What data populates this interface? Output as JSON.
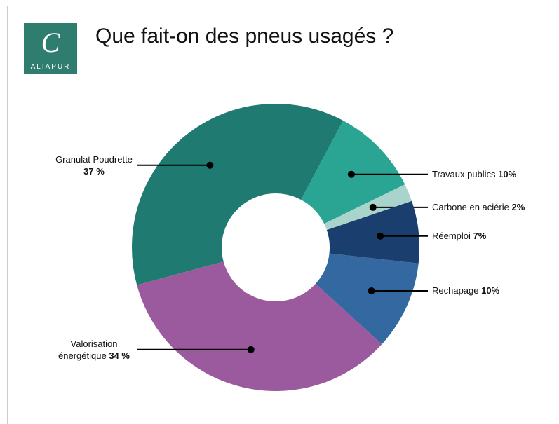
{
  "logo": {
    "text": "ALIAPUR"
  },
  "chart_data": {
    "type": "donut",
    "title": "Que fait-on des pneus usagés ?",
    "categories": [
      "Granulat Poudrette",
      "Travaux publics",
      "Carbone en aciérie",
      "Réemploi",
      "Rechapage",
      "Valorisation énergétique"
    ],
    "values": [
      37,
      10,
      2,
      7,
      10,
      34
    ],
    "value_labels": [
      "37 %",
      "10%",
      "2%",
      "7%",
      "10%",
      "34 %"
    ],
    "colors": [
      "#1f7a72",
      "#2aa594",
      "#a8d4cc",
      "#1a3f6e",
      "#3468a0",
      "#9c5a9e"
    ]
  }
}
